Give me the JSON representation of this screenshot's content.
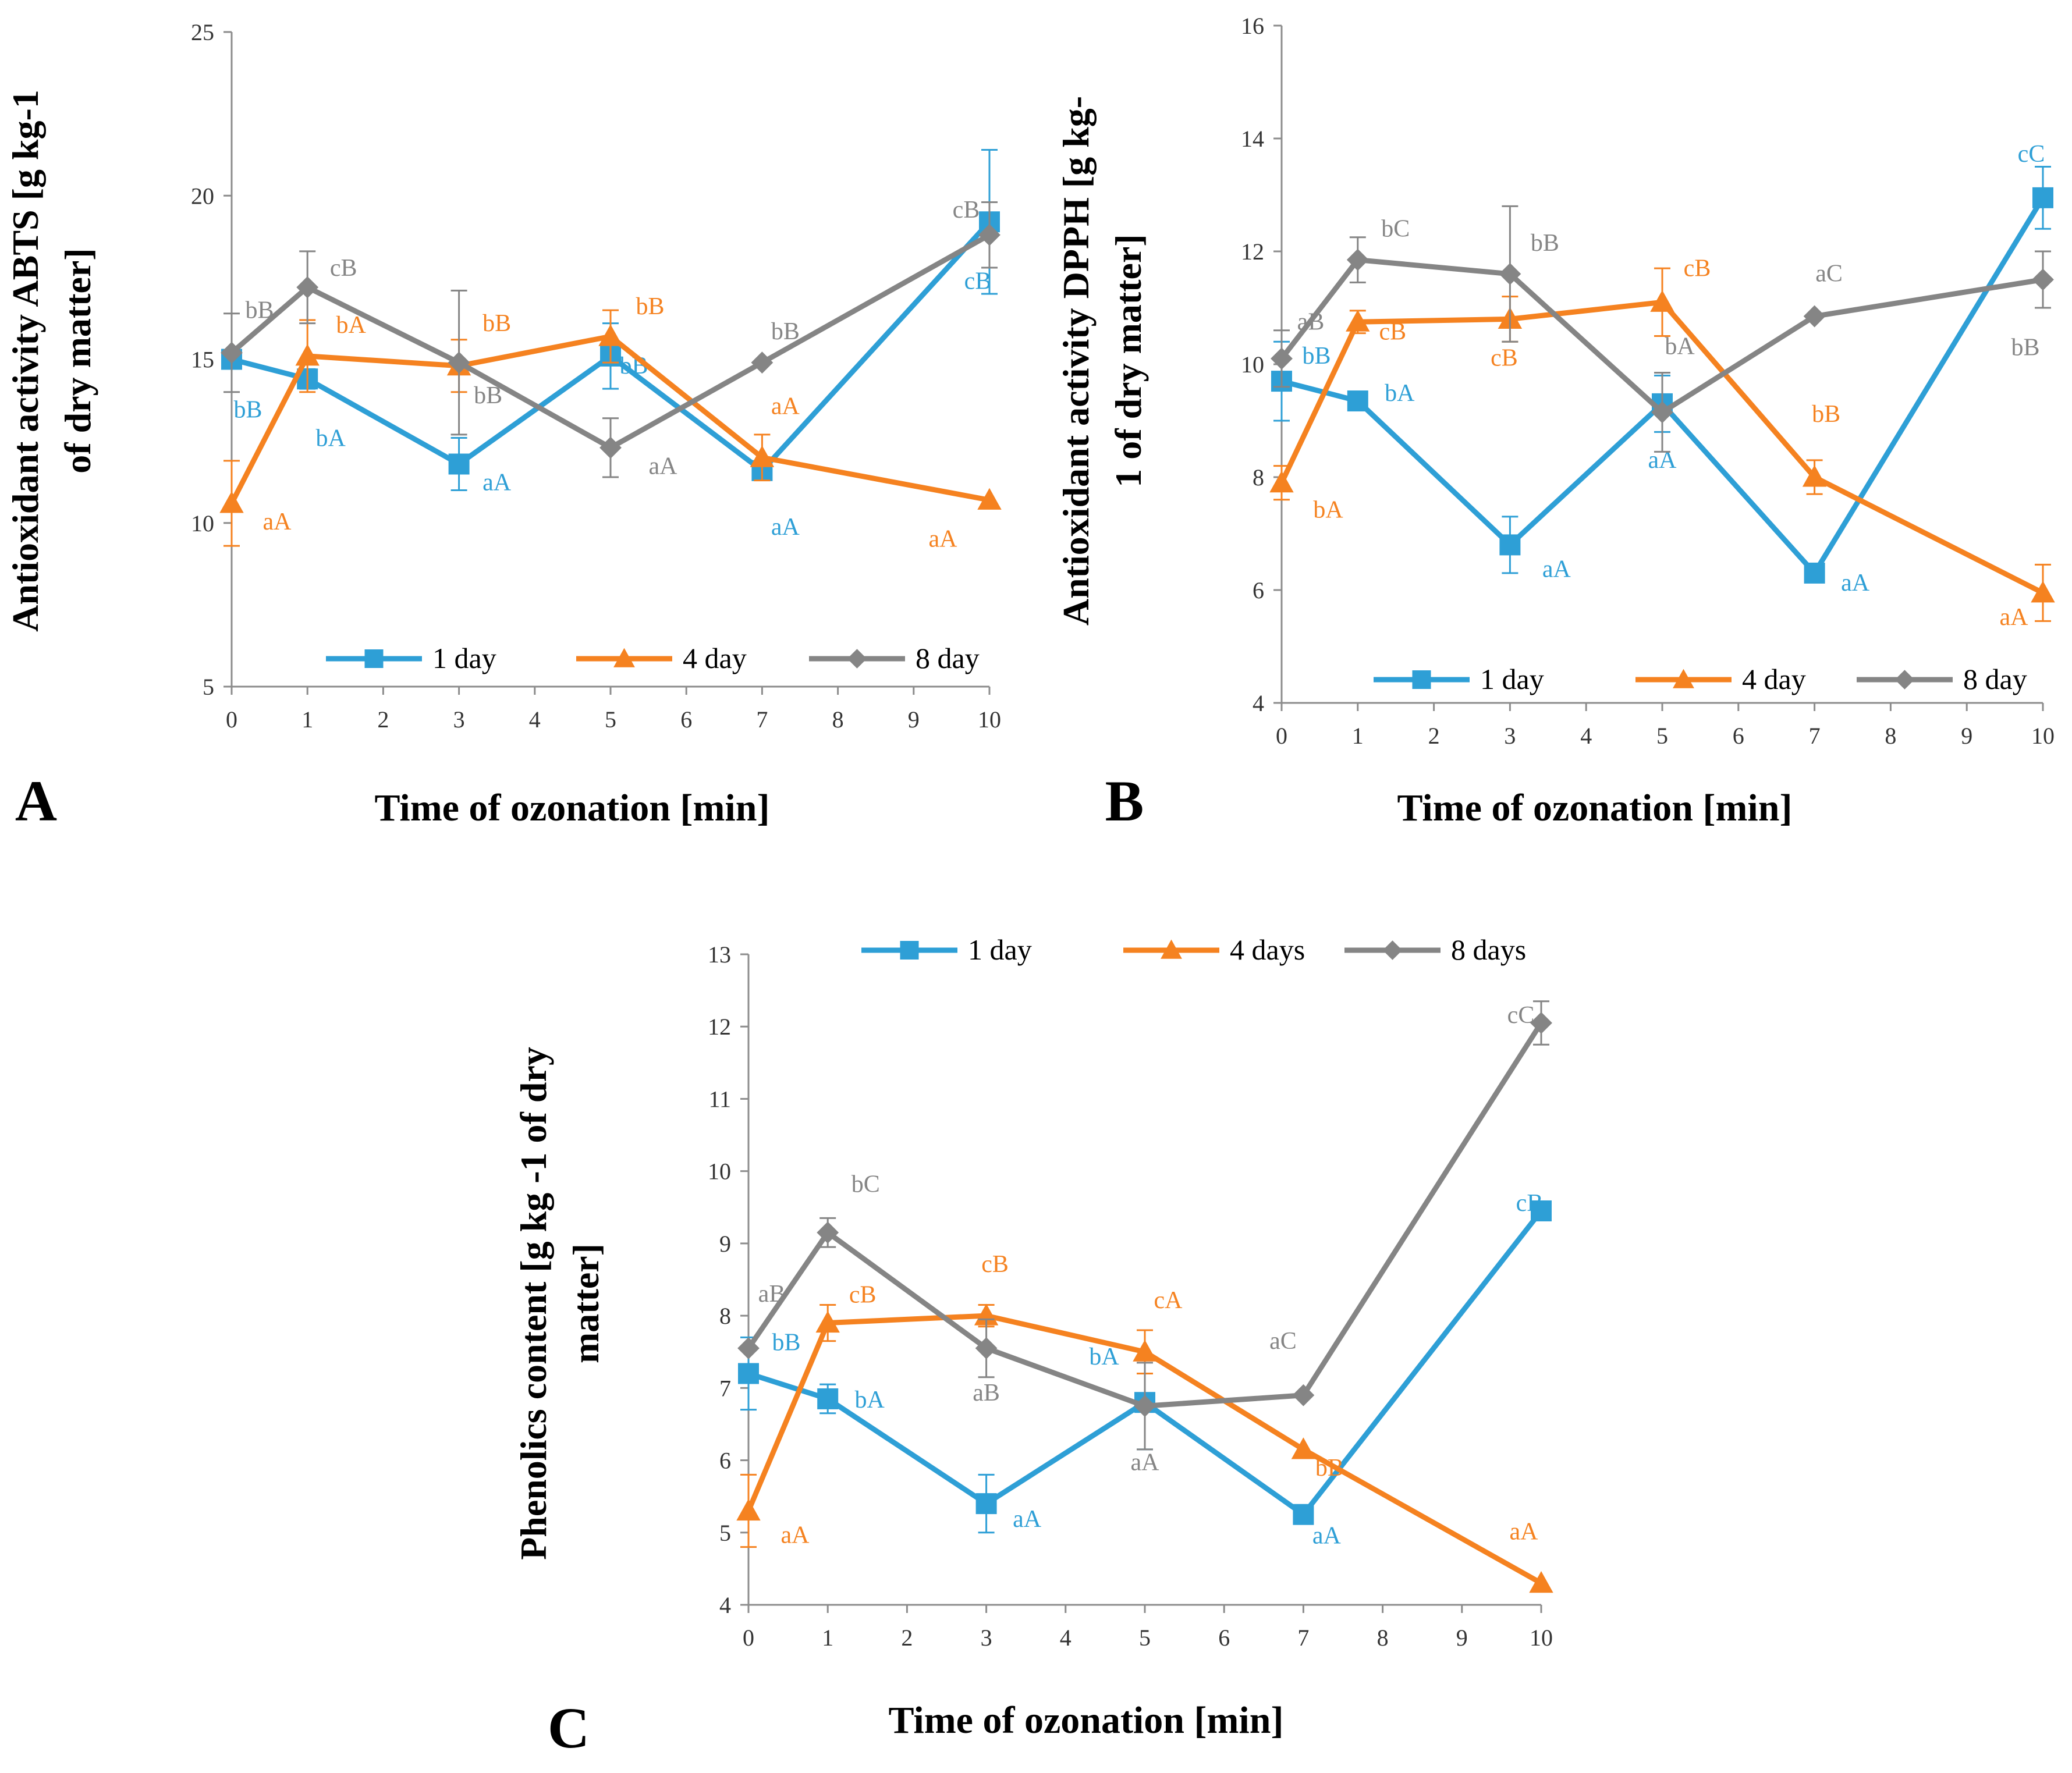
{
  "chart_data": [
    {
      "type": "line",
      "panel_label": "A",
      "xlabel": "Time of ozonation [min]",
      "ylabel_lines": [
        "Antioxidant activity ABTS [g kg-1",
        "of dry matter]"
      ],
      "categories": [
        "0",
        "1",
        "2",
        "3",
        "4",
        "5",
        "6",
        "7",
        "8",
        "9",
        "10"
      ],
      "yticks": [
        "5",
        "10",
        "15",
        "20",
        "25"
      ],
      "ylim": [
        5,
        25
      ],
      "legend_position": "bottom",
      "series": [
        {
          "name": "1 day",
          "color": "#2E9FD6",
          "marker": "square",
          "x": [
            0,
            1,
            3,
            5,
            7,
            10
          ],
          "y": [
            15.0,
            14.4,
            11.8,
            15.1,
            11.6,
            19.2
          ],
          "err": [
            0,
            0.3,
            0.8,
            1.0,
            0,
            2.2
          ],
          "labels": [
            "bB",
            "bA",
            "aA",
            "bB",
            "aA",
            "cB"
          ]
        },
        {
          "name": "4 day",
          "color": "#F58220",
          "marker": "triangle",
          "x": [
            0,
            1,
            3,
            5,
            7,
            10
          ],
          "y": [
            10.6,
            15.1,
            14.8,
            15.7,
            12.0,
            10.7
          ],
          "err": [
            1.3,
            1.1,
            0.8,
            0.8,
            0.7,
            0
          ],
          "labels": [
            "aA",
            "bA",
            "bB",
            "bB",
            "aA",
            "aA"
          ]
        },
        {
          "name": "8 day",
          "color": "#858585",
          "marker": "diamond",
          "x": [
            0,
            1,
            3,
            5,
            7,
            10
          ],
          "y": [
            15.2,
            17.2,
            14.9,
            12.3,
            14.9,
            18.8
          ],
          "err": [
            1.2,
            1.1,
            2.2,
            0.9,
            0,
            1.0
          ],
          "labels": [
            "bB",
            "cB",
            "bB",
            "aA",
            "bB",
            "cB"
          ]
        }
      ]
    },
    {
      "type": "line",
      "panel_label": "B",
      "xlabel": "Time of ozonation [min]",
      "ylabel_lines": [
        "Antioxidant activity DPPH [g kg-",
        "1 of dry matter]"
      ],
      "categories": [
        "0",
        "1",
        "2",
        "3",
        "4",
        "5",
        "6",
        "7",
        "8",
        "9",
        "10"
      ],
      "yticks": [
        "4",
        "6",
        "8",
        "10",
        "12",
        "14",
        "16"
      ],
      "ylim": [
        4,
        16
      ],
      "legend_position": "bottom",
      "series": [
        {
          "name": "1 day",
          "color": "#2E9FD6",
          "marker": "square",
          "x": [
            0,
            1,
            3,
            5,
            7,
            10
          ],
          "y": [
            9.7,
            9.35,
            6.8,
            9.3,
            6.3,
            12.95
          ],
          "err": [
            0.7,
            0,
            0.5,
            0.5,
            0,
            0.55
          ],
          "labels": [
            "bB",
            "bA",
            "aA",
            "aA",
            "aA",
            "cC"
          ]
        },
        {
          "name": "4 day",
          "color": "#F58220",
          "marker": "triangle",
          "x": [
            0,
            1,
            3,
            5,
            7,
            10
          ],
          "y": [
            7.9,
            10.75,
            10.8,
            11.1,
            8.0,
            5.95
          ],
          "err": [
            0.3,
            0.2,
            0.4,
            0.6,
            0.3,
            0.5
          ],
          "labels": [
            "bA",
            "cB",
            "cB",
            "cB",
            "bB",
            "aA"
          ]
        },
        {
          "name": "8 day",
          "color": "#858585",
          "marker": "diamond",
          "x": [
            0,
            1,
            3,
            5,
            7,
            10
          ],
          "y": [
            10.1,
            11.85,
            11.6,
            9.15,
            10.85,
            11.5
          ],
          "err": [
            0.5,
            0.4,
            1.2,
            0.7,
            0,
            0.5
          ],
          "labels": [
            "aB",
            "bC",
            "bB",
            "bA",
            "aC",
            "bB"
          ]
        }
      ]
    },
    {
      "type": "line",
      "panel_label": "C",
      "xlabel": "Time of ozonation [min]",
      "ylabel_lines": [
        "Phenolics content [g kg -1 of dry",
        "matter]"
      ],
      "categories": [
        "0",
        "1",
        "2",
        "3",
        "4",
        "5",
        "6",
        "7",
        "8",
        "9",
        "10"
      ],
      "yticks": [
        "4",
        "5",
        "6",
        "7",
        "8",
        "9",
        "10",
        "11",
        "12",
        "13"
      ],
      "ylim": [
        4,
        13
      ],
      "legend_position": "top",
      "series": [
        {
          "name": "1 day",
          "color": "#2E9FD6",
          "marker": "square",
          "x": [
            0,
            1,
            3,
            5,
            7,
            10
          ],
          "y": [
            7.2,
            6.85,
            5.4,
            6.8,
            5.25,
            9.45
          ],
          "err": [
            0.5,
            0.2,
            0.4,
            0.65,
            0,
            0
          ],
          "labels": [
            "bB",
            "bA",
            "aA",
            "bA",
            "aA",
            "cB"
          ]
        },
        {
          "name": "4 days",
          "color": "#F58220",
          "marker": "triangle",
          "x": [
            0,
            1,
            3,
            5,
            7,
            10
          ],
          "y": [
            5.3,
            7.9,
            8.0,
            7.5,
            6.15,
            4.3
          ],
          "err": [
            0.5,
            0.25,
            0.15,
            0.3,
            0,
            0
          ],
          "labels": [
            "aA",
            "cB",
            "cB",
            "cA",
            "bB",
            "aA"
          ]
        },
        {
          "name": "8 days",
          "color": "#858585",
          "marker": "diamond",
          "x": [
            0,
            1,
            3,
            5,
            7,
            10
          ],
          "y": [
            7.55,
            9.15,
            7.55,
            6.75,
            6.9,
            12.05
          ],
          "err": [
            0,
            0.2,
            0.4,
            0.6,
            0,
            0.3
          ],
          "labels": [
            "aB",
            "bC",
            "aB",
            "aA",
            "aC",
            "cC"
          ]
        }
      ]
    }
  ]
}
